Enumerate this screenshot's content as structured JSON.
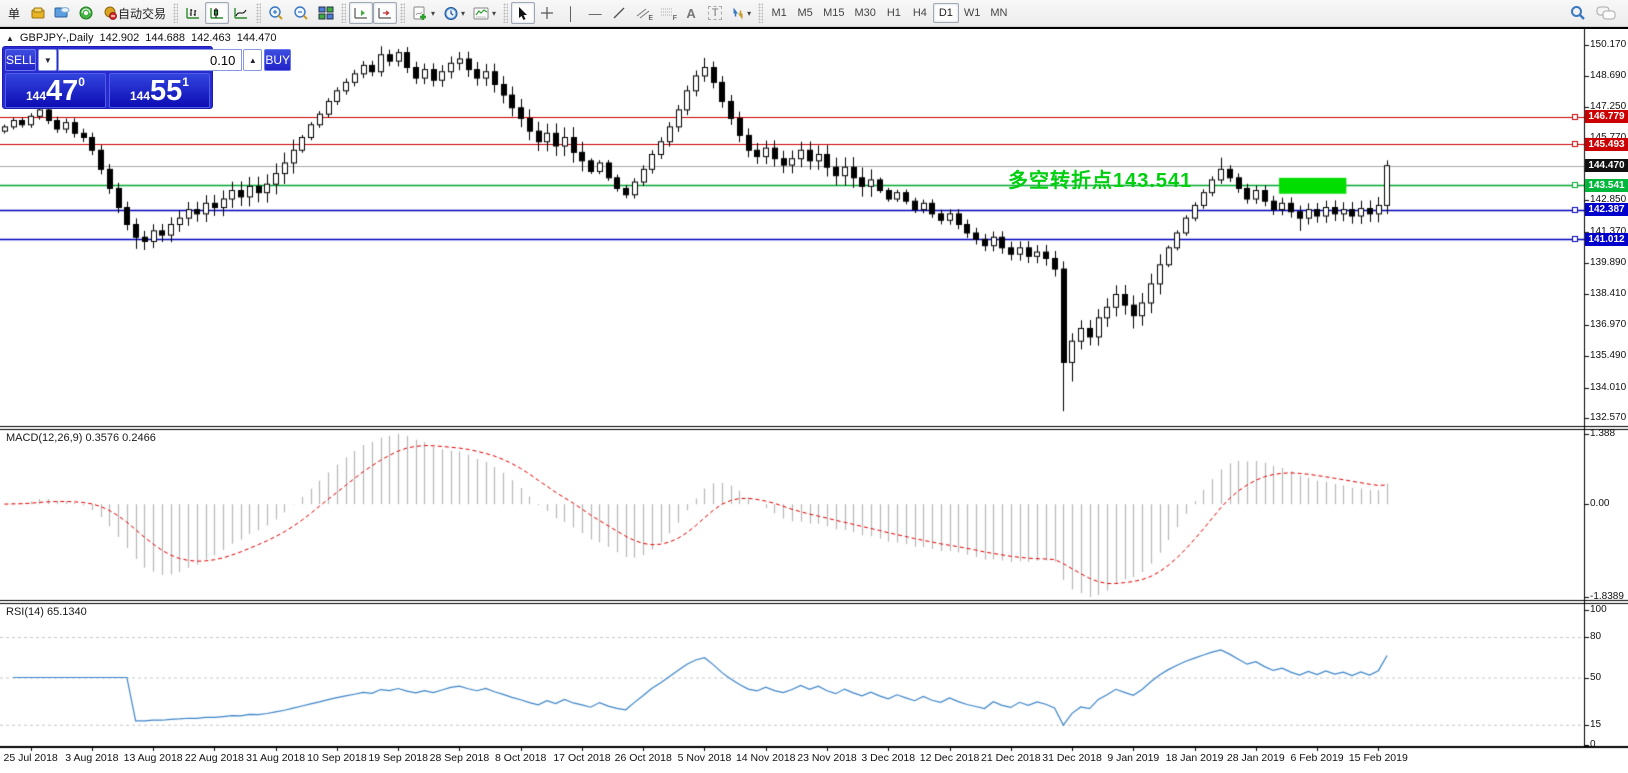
{
  "toolbar": {
    "new_order_label": "单",
    "autotrade_label": "自动交易",
    "tool_glyphs": {
      "channel": "E",
      "fibo": "F",
      "text": "A",
      "label": "T"
    },
    "timeframes": [
      "M1",
      "M5",
      "M15",
      "M30",
      "H1",
      "H4",
      "D1",
      "W1",
      "MN"
    ],
    "active_timeframe": "D1"
  },
  "header": {
    "collapse_glyph": "▲",
    "symbol": "GBPJPY-,Daily",
    "open": "142.902",
    "high": "144.688",
    "low": "142.463",
    "close": "144.470"
  },
  "trade_panel": {
    "sell_label": "SELL",
    "buy_label": "BUY",
    "volume": "0.10",
    "sell_price": {
      "prefix": "144",
      "big": "47",
      "sup": "0"
    },
    "buy_price": {
      "prefix": "144",
      "big": "55",
      "sup": "1"
    }
  },
  "chart_data": {
    "type": "candlestick",
    "symbol": "GBPJPY-",
    "timeframe": "Daily",
    "price_axis": {
      "min": 132.25,
      "max": 150.82,
      "ticks": [
        "150.170",
        "148.690",
        "147.250",
        "145.770",
        "144.290",
        "142.850",
        "141.370",
        "139.890",
        "138.410",
        "136.970",
        "135.490",
        "134.010",
        "132.570"
      ],
      "badges": [
        {
          "value": "146.779",
          "price": 146.779,
          "color": "#cc0000"
        },
        {
          "value": "145.493",
          "price": 145.493,
          "color": "#cc0000"
        },
        {
          "value": "144.470",
          "price": 144.47,
          "color": "#111111"
        },
        {
          "value": "143.541",
          "price": 143.541,
          "color": "#00b93c"
        },
        {
          "value": "142.387",
          "price": 142.387,
          "color": "#0000cc"
        },
        {
          "value": "141.012",
          "price": 141.012,
          "color": "#0000cc"
        }
      ]
    },
    "hlines": [
      {
        "price": 146.779,
        "color": "#cc0000",
        "w": 1,
        "handle": true
      },
      {
        "price": 145.493,
        "color": "#cc0000",
        "w": 1,
        "handle": true
      },
      {
        "price": 144.47,
        "color": "#aaaaaa",
        "w": 1,
        "handle": false
      },
      {
        "price": 143.541,
        "color": "#00a830",
        "w": 1.4,
        "handle": true
      },
      {
        "price": 142.387,
        "color": "#0000bb",
        "w": 1.6,
        "handle": true
      },
      {
        "price": 141.012,
        "color": "#0000bb",
        "w": 1.6,
        "handle": true
      }
    ],
    "annotation": {
      "text": "多空转折点143.541",
      "color": "#00cf10"
    },
    "highlight_rect": {
      "from_index": 146,
      "to_index": 153,
      "price_top": 143.9,
      "price_bottom": 143.15,
      "color": "#00dd00"
    },
    "candles": {
      "first_open": 146.1,
      "default_wick": 0.22,
      "closes": [
        146.3,
        146.6,
        146.4,
        146.8,
        147.1,
        146.6,
        146.2,
        146.5,
        146.0,
        145.8,
        145.2,
        144.3,
        143.4,
        142.5,
        141.7,
        141.1,
        140.9,
        141.4,
        141.2,
        141.7,
        142.0,
        142.4,
        142.2,
        142.7,
        142.5,
        142.9,
        143.3,
        143.0,
        143.5,
        143.2,
        143.6,
        144.1,
        144.6,
        145.2,
        145.8,
        146.4,
        146.9,
        147.5,
        148.0,
        148.4,
        148.8,
        149.2,
        148.9,
        149.7,
        149.4,
        149.8,
        149.1,
        148.6,
        149.0,
        148.5,
        148.9,
        149.3,
        149.5,
        149.0,
        148.6,
        148.9,
        148.3,
        147.8,
        147.2,
        146.7,
        146.1,
        145.6,
        146.0,
        145.4,
        145.8,
        145.1,
        144.7,
        144.2,
        144.6,
        143.9,
        143.4,
        143.1,
        143.7,
        144.3,
        145.0,
        145.6,
        146.3,
        147.1,
        148.0,
        148.7,
        149.1,
        148.4,
        147.5,
        146.7,
        145.9,
        145.2,
        144.9,
        145.3,
        144.8,
        144.5,
        144.8,
        145.2,
        144.7,
        145.0,
        144.4,
        144.0,
        144.4,
        143.9,
        143.5,
        143.8,
        143.3,
        142.9,
        143.2,
        142.8,
        142.4,
        142.7,
        142.2,
        141.9,
        142.2,
        141.7,
        141.3,
        141.0,
        140.7,
        141.1,
        140.6,
        140.3,
        140.6,
        140.2,
        140.4,
        140.1,
        139.6,
        135.2,
        136.2,
        136.8,
        136.4,
        137.3,
        137.8,
        138.4,
        137.9,
        137.4,
        138.0,
        138.9,
        139.8,
        140.6,
        141.3,
        142.0,
        142.6,
        143.2,
        143.8,
        144.3,
        143.9,
        143.4,
        142.9,
        143.3,
        142.8,
        142.4,
        142.7,
        142.3,
        142.0,
        142.4,
        142.1,
        142.5,
        142.2,
        142.4,
        142.1,
        142.45,
        142.2,
        142.6,
        144.47
      ],
      "wick_overrides": {
        "4": [
          147.55,
          null
        ],
        "15": [
          null,
          140.55
        ],
        "16": [
          null,
          140.5
        ],
        "43": [
          150.1,
          null
        ],
        "45": [
          149.97,
          null
        ],
        "80": [
          149.55,
          null
        ],
        "121": [
          null,
          132.9
        ],
        "122": [
          null,
          134.3
        ],
        "129": [
          null,
          136.8
        ],
        "139": [
          144.85,
          null
        ],
        "148": [
          null,
          141.4
        ],
        "158": [
          144.72,
          null
        ]
      }
    },
    "dates": [
      "25 Jul 2018",
      "3 Aug 2018",
      "13 Aug 2018",
      "22 Aug 2018",
      "31 Aug 2018",
      "10 Sep 2018",
      "19 Sep 2018",
      "28 Sep 2018",
      "8 Oct 2018",
      "17 Oct 2018",
      "26 Oct 2018",
      "5 Nov 2018",
      "14 Nov 2018",
      "23 Nov 2018",
      "3 Dec 2018",
      "12 Dec 2018",
      "21 Dec 2018",
      "31 Dec 2018",
      "9 Jan 2019",
      "18 Jan 2019",
      "28 Jan 2019",
      "6 Feb 2019",
      "15 Feb 2019"
    ],
    "macd": {
      "name": "MACD(12,26,9)",
      "values_text": "0.3576 0.2466",
      "fast": 12,
      "slow": 26,
      "signal": 9,
      "axis_max": 1.388,
      "axis_min": -1.8389,
      "axis_labels": [
        "1.388",
        "0.00",
        "-1.8389"
      ],
      "histogram_color": "#b9b9b9",
      "signal_color": "#e00000"
    },
    "rsi": {
      "name": "RSI(14)",
      "value_text": "65.1340",
      "period": 14,
      "levels": [
        80,
        50,
        15
      ],
      "axis_labels": [
        "100",
        "80",
        "50",
        "15",
        "0"
      ],
      "axis_max": 100,
      "axis_min": 0,
      "line_color": "#3d85c8",
      "level_color": "#c8c8c8"
    }
  }
}
